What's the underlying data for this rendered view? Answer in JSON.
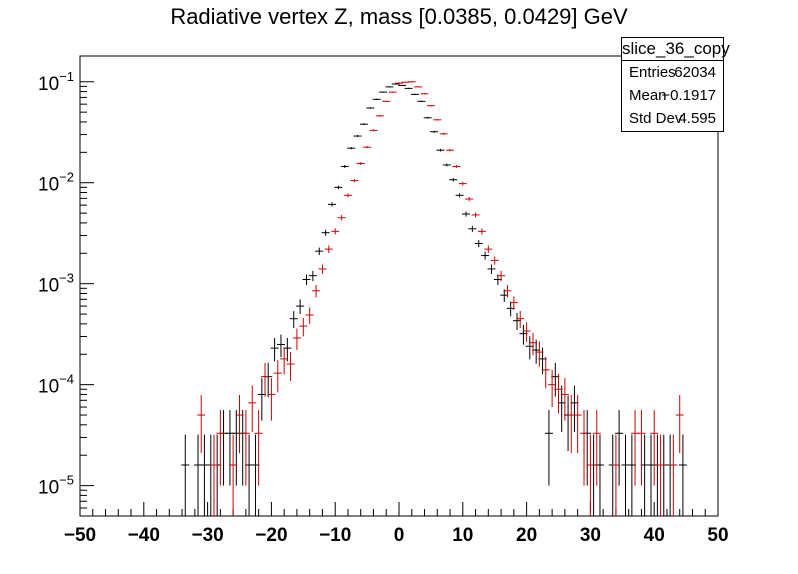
{
  "chart_data": {
    "type": "scatter",
    "title": "Radiative vertex Z, mass [0.0385, 0.0429] GeV",
    "xlabel": "",
    "ylabel": "",
    "xlim": [
      -50,
      50
    ],
    "ylim": [
      5e-06,
      0.18
    ],
    "yscale": "log",
    "grid": false,
    "x_ticks": [
      -50,
      -40,
      -30,
      -20,
      -10,
      0,
      10,
      20,
      30,
      40,
      50
    ],
    "x_tick_labels": [
      "−50",
      "−40",
      "−30",
      "−20",
      "−10",
      "0",
      "10",
      "20",
      "30",
      "40",
      "50"
    ],
    "y_ticks": [
      1e-05,
      0.0001,
      0.001,
      0.01,
      0.1
    ],
    "y_tick_labels": [
      {
        "base": "10",
        "exp": "−5"
      },
      {
        "base": "10",
        "exp": "−4"
      },
      {
        "base": "10",
        "exp": "−3"
      },
      {
        "base": "10",
        "exp": "−2"
      },
      {
        "base": "10",
        "exp": "−1"
      }
    ],
    "series": [
      {
        "color": "#000000",
        "x": [
          -33.5,
          -31.5,
          -30.5,
          -29.5,
          -28.5,
          -27.5,
          -26.5,
          -25.5,
          -24.5,
          -23.5,
          -22.5,
          -21.5,
          -20.5,
          -19.5,
          -18.5,
          -17.5,
          -16.5,
          -15.5,
          -14.5,
          -13.5,
          -12.5,
          -11.5,
          -10.5,
          -9.5,
          -8.5,
          -7.5,
          -6.5,
          -5.5,
          -4.5,
          -3.5,
          -2.5,
          -1.5,
          -0.5,
          0.5,
          1.5,
          2.5,
          3.5,
          4.5,
          5.5,
          6.5,
          7.5,
          8.5,
          9.5,
          10.5,
          11.5,
          12.5,
          13.5,
          14.5,
          15.5,
          16.5,
          17.5,
          18.5,
          19.5,
          20.5,
          21.5,
          22.5,
          23.5,
          24.5,
          25.5,
          26.5,
          27.5,
          29.5,
          30.5,
          31.5,
          33.5,
          34.5,
          35.5,
          36.5,
          38.5,
          39.5,
          40.5,
          41.5,
          42.5,
          44.5
        ],
        "y": [
          1.6e-05,
          1.6e-05,
          1.6e-05,
          1.6e-05,
          1.6e-05,
          3.3e-05,
          3.3e-05,
          3.3e-05,
          3.3e-05,
          1.6e-05,
          1.6e-05,
          8e-05,
          0.00012,
          0.00023,
          0.00025,
          0.00023,
          0.00045,
          0.0006,
          0.0011,
          0.0012,
          0.0021,
          0.0032,
          0.0061,
          0.009,
          0.0145,
          0.022,
          0.029,
          0.038,
          0.055,
          0.067,
          0.079,
          0.089,
          0.095,
          0.092,
          0.086,
          0.075,
          0.064,
          0.044,
          0.032,
          0.021,
          0.015,
          0.0107,
          0.0075,
          0.0049,
          0.0035,
          0.0025,
          0.0019,
          0.0014,
          0.0011,
          0.00077,
          0.00057,
          0.00043,
          0.00032,
          0.00024,
          0.00022,
          0.00018,
          3.3e-05,
          0.00012,
          6.6e-05,
          5e-05,
          6.6e-05,
          3.3e-05,
          1.6e-05,
          1.6e-05,
          1.6e-05,
          3.3e-05,
          1.6e-05,
          1.6e-05,
          1.6e-05,
          1.6e-05,
          1.6e-05,
          1.6e-05,
          1.6e-05,
          1.6e-05
        ],
        "yerr": [
          1.6e-05,
          1.6e-05,
          1.6e-05,
          1.6e-05,
          1.6e-05,
          2.3e-05,
          2.3e-05,
          2.3e-05,
          2.3e-05,
          1.6e-05,
          1.6e-05,
          3.6e-05,
          4.5e-05,
          6e-05,
          6.3e-05,
          6e-05,
          8.5e-05,
          0.0001,
          0.00013,
          0.00014,
          0.00018,
          0.00022,
          0.0003,
          0.00037,
          0.00047,
          0.0006,
          0.0007,
          0.0008,
          0.00095,
          0.001,
          0.0011,
          0.0012,
          0.0012,
          0.0012,
          0.0012,
          0.0011,
          0.001,
          0.00085,
          0.00072,
          0.0006,
          0.0005,
          0.00042,
          0.00035,
          0.00028,
          0.00024,
          0.0002,
          0.00017,
          0.00015,
          0.00013,
          0.00011,
          9.5e-05,
          8.3e-05,
          7.1e-05,
          6.2e-05,
          5.9e-05,
          5.3e-05,
          2.3e-05,
          4.4e-05,
          3.2e-05,
          2.8e-05,
          3.2e-05,
          2.3e-05,
          1.6e-05,
          1.6e-05,
          1.6e-05,
          2.3e-05,
          1.6e-05,
          1.6e-05,
          1.6e-05,
          1.6e-05,
          1.6e-05,
          1.6e-05,
          1.6e-05,
          1.6e-05
        ]
      },
      {
        "color": "#cc0000",
        "x": [
          -31,
          -29,
          -28,
          -26,
          -25,
          -24,
          -23,
          -22,
          -21,
          -20,
          -19,
          -18,
          -17,
          -16,
          -15,
          -14,
          -13,
          -12,
          -11,
          -10,
          -9,
          -8,
          -7,
          -6,
          -5,
          -4,
          -3,
          -2,
          -1,
          0,
          1,
          2,
          3,
          4,
          5,
          6,
          7,
          8,
          9,
          10,
          11,
          12,
          13,
          14,
          15,
          16,
          17,
          18,
          19,
          20,
          21,
          22,
          23,
          24,
          25,
          26,
          27,
          28,
          29,
          30,
          31,
          34,
          37,
          38,
          40,
          41,
          43,
          44
        ],
        "y": [
          5e-05,
          1.6e-05,
          3.3e-05,
          1.6e-05,
          5e-05,
          3.3e-05,
          6.6e-05,
          3.3e-05,
          0.00012,
          8e-05,
          0.00013,
          0.00018,
          0.00016,
          0.00029,
          0.00038,
          0.00049,
          0.00085,
          0.0014,
          0.0022,
          0.0033,
          0.0045,
          0.0075,
          0.0105,
          0.0155,
          0.0225,
          0.033,
          0.046,
          0.064,
          0.079,
          0.097,
          0.099,
          0.1,
          0.089,
          0.076,
          0.058,
          0.042,
          0.0305,
          0.021,
          0.0145,
          0.0098,
          0.0069,
          0.0048,
          0.0033,
          0.0022,
          0.0017,
          0.0012,
          0.00085,
          0.00065,
          0.00045,
          0.00034,
          0.00026,
          0.00021,
          0.00014,
          0.0001,
          9e-05,
          8e-05,
          5e-05,
          5e-05,
          3.3e-05,
          1.6e-05,
          3.3e-05,
          1.6e-05,
          3.3e-05,
          3.3e-05,
          3.3e-05,
          1.6e-05,
          1.6e-05,
          5e-05
        ],
        "yerr": [
          2.9e-05,
          1.6e-05,
          2.3e-05,
          1.6e-05,
          2.9e-05,
          2.3e-05,
          3.2e-05,
          2.3e-05,
          4.4e-05,
          3.6e-05,
          4.6e-05,
          5.4e-05,
          5.1e-05,
          6.9e-05,
          7.9e-05,
          9e-05,
          0.00012,
          0.00015,
          0.00019,
          0.00023,
          0.00027,
          0.00035,
          0.00041,
          0.0005,
          0.0006,
          0.00072,
          0.00085,
          0.001,
          0.0011,
          0.0012,
          0.0012,
          0.0013,
          0.0012,
          0.0011,
          0.00095,
          0.0008,
          0.00068,
          0.00057,
          0.00047,
          0.00039,
          0.00033,
          0.00027,
          0.00023,
          0.00019,
          0.00016,
          0.00014,
          0.00012,
          0.0001,
          8.6e-05,
          7.5e-05,
          6.5e-05,
          5.9e-05,
          4.8e-05,
          4e-05,
          3.8e-05,
          3.6e-05,
          2.9e-05,
          2.9e-05,
          2.3e-05,
          1.6e-05,
          2.3e-05,
          1.6e-05,
          2.3e-05,
          2.3e-05,
          2.3e-05,
          1.6e-05,
          1.6e-05,
          2.9e-05
        ]
      }
    ]
  },
  "stats": {
    "name": "slice_36_copy",
    "rows": [
      {
        "key": "Entries",
        "value": "62034"
      },
      {
        "key": "Mean",
        "value": "−0.1917"
      },
      {
        "key": "Std Dev",
        "value": "4.595"
      }
    ]
  }
}
